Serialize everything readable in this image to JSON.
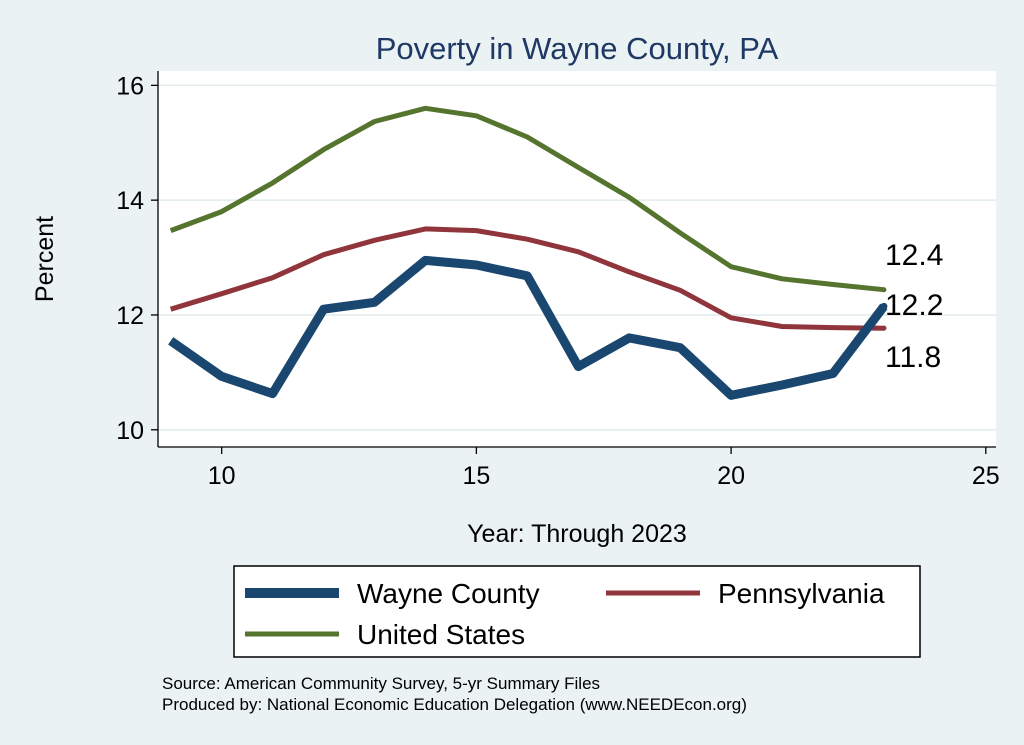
{
  "chart_data": {
    "type": "line",
    "title": "Poverty in Wayne County, PA",
    "xlabel": "Year: Through 2023",
    "ylabel": "Percent",
    "xlim": [
      8.75,
      25.2
    ],
    "ylim": [
      9.7,
      16.25
    ],
    "xticks": [
      10,
      15,
      20,
      25
    ],
    "yticks": [
      10,
      12,
      14,
      16
    ],
    "grid": true,
    "legend_placement": "bottom",
    "series": [
      {
        "name": "Wayne County",
        "color": "#1a476f",
        "x": [
          9,
          10,
          11,
          12,
          13,
          14,
          15,
          16,
          17,
          18,
          19,
          20,
          21,
          22,
          23
        ],
        "values": [
          11.55,
          10.93,
          10.63,
          12.1,
          12.22,
          12.95,
          12.87,
          12.68,
          11.1,
          11.6,
          11.43,
          10.6,
          10.78,
          10.98,
          12.15
        ],
        "end_label": "12.2"
      },
      {
        "name": "Pennsylvania",
        "color": "#90353b",
        "x": [
          9,
          10,
          11,
          12,
          13,
          14,
          15,
          16,
          17,
          18,
          19,
          20,
          21,
          22,
          23
        ],
        "values": [
          12.1,
          12.37,
          12.65,
          13.05,
          13.3,
          13.5,
          13.47,
          13.32,
          13.1,
          12.75,
          12.43,
          11.95,
          11.8,
          11.78,
          11.77
        ],
        "end_label": "11.8"
      },
      {
        "name": "United States",
        "color": "#55752f",
        "x": [
          9,
          10,
          11,
          12,
          13,
          14,
          15,
          16,
          17,
          18,
          19,
          20,
          21,
          22,
          23
        ],
        "values": [
          13.47,
          13.8,
          14.3,
          14.88,
          15.37,
          15.6,
          15.47,
          15.1,
          14.57,
          14.05,
          13.43,
          12.84,
          12.63,
          12.53,
          12.44
        ],
        "end_label": "12.4"
      }
    ]
  },
  "footer": {
    "source": "Source: American Community Survey, 5-yr Summary Files",
    "produced": "Produced by: National Economic Education Delegation (www.NEEDEcon.org)"
  },
  "colors": {
    "background": "#eaf2f3",
    "plot_background": "#ffffff",
    "grid": "#e1ecee",
    "title": "#1f3864"
  }
}
